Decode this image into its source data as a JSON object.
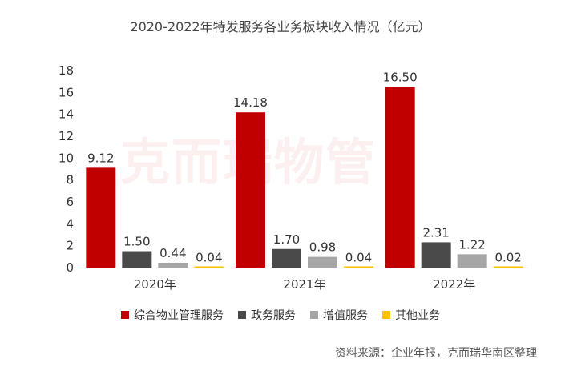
{
  "title": "2020-2022年特发服务各业务板块收入情况（亿元）",
  "watermark": "克而瑞物管",
  "source": "资料来源：企业年报，克而瑞华南区整理",
  "colors": {
    "series": [
      "#c00000",
      "#4a4a4a",
      "#a6a6a6",
      "#ffc000"
    ]
  },
  "chart_data": {
    "type": "bar",
    "title": "2020-2022年特发服务各业务板块收入情况（亿元）",
    "categories": [
      "2020年",
      "2021年",
      "2022年"
    ],
    "series": [
      {
        "name": "综合物业管理服务",
        "values": [
          9.12,
          14.18,
          16.5
        ]
      },
      {
        "name": "政务服务",
        "values": [
          1.5,
          1.7,
          2.31
        ]
      },
      {
        "name": "增值服务",
        "values": [
          0.44,
          0.98,
          1.22
        ]
      },
      {
        "name": "其他业务",
        "values": [
          0.04,
          0.04,
          0.02
        ]
      }
    ],
    "data_labels": [
      [
        "9.12",
        "1.50",
        "0.44",
        "0.04"
      ],
      [
        "14.18",
        "1.70",
        "0.98",
        "0.04"
      ],
      [
        "16.50",
        "2.31",
        "1.22",
        "0.02"
      ]
    ],
    "yticks": [
      "0",
      "2",
      "4",
      "6",
      "8",
      "10",
      "12",
      "14",
      "16",
      "18"
    ],
    "ylim": [
      0,
      18
    ],
    "grid": false,
    "legend": "bottom"
  }
}
